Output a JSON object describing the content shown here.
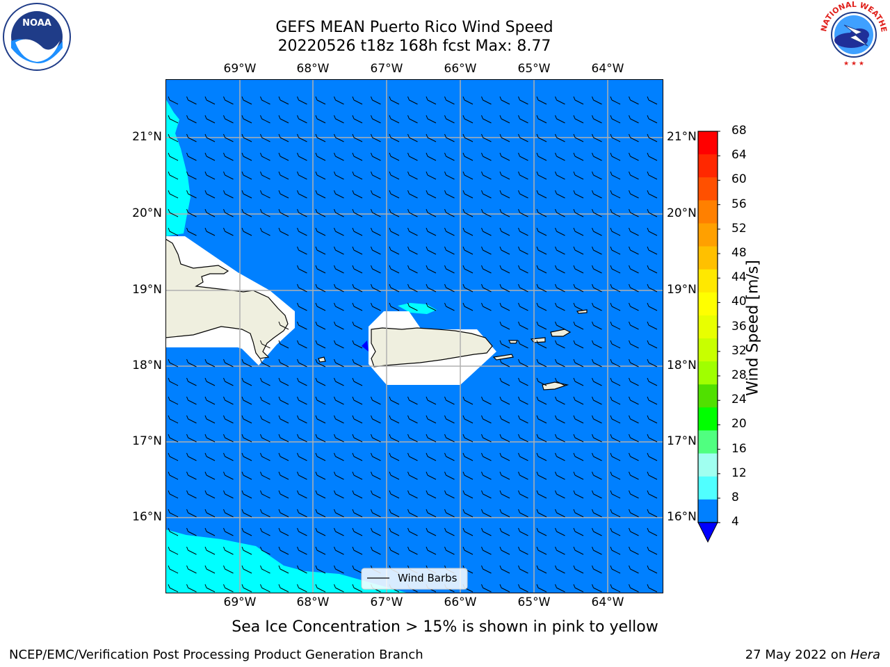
{
  "header": {
    "title_line1": "GEFS MEAN Puerto Rico Wind Speed",
    "title_line2": "20220526 t18z 168h fcst   Max: 8.77"
  },
  "map": {
    "lon_labels": [
      "69°W",
      "68°W",
      "67°W",
      "66°W",
      "65°W",
      "64°W"
    ],
    "lat_labels": [
      "21°N",
      "20°N",
      "19°N",
      "18°N",
      "17°N",
      "16°N"
    ],
    "ocean_color": "#0080ff",
    "land_color": "#efefdf",
    "light_wind_color": "#00ffff",
    "legend_label": "Wind Barbs"
  },
  "colorbar": {
    "label": "Wind Speed [m/s]",
    "ticks": [
      "68",
      "64",
      "60",
      "56",
      "52",
      "48",
      "44",
      "40",
      "36",
      "32",
      "28",
      "24",
      "20",
      "16",
      "12",
      "8",
      "4"
    ],
    "colors": [
      "#ff0000",
      "#ff2800",
      "#ff5000",
      "#ff8000",
      "#ffa000",
      "#ffc000",
      "#ffe800",
      "#ffff00",
      "#e8ff00",
      "#c8ff00",
      "#a0ff00",
      "#50e000",
      "#00ff00",
      "#50ff80",
      "#a0fff0",
      "#50ffff",
      "#00ffff",
      "#0080ff"
    ],
    "under_color": "#0000ff"
  },
  "footer": {
    "note": "Sea Ice Concentration > 15% is shown in pink to yellow",
    "credit_left": "NCEP/EMC/Verification Post Processing Product Generation Branch",
    "date": "27 May 2022 on ",
    "machine": "Hera"
  },
  "logos": {
    "noaa_text": "NOAA",
    "nws_text": "NATIONAL WEATHER SERVICE"
  }
}
